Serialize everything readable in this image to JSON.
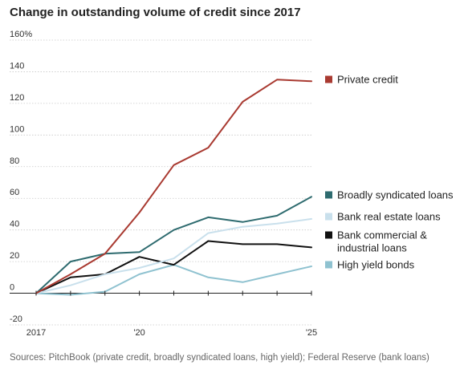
{
  "title": "Change in outstanding volume of credit since 2017",
  "source": "Sources: PitchBook (private credit, broadly syndicated loans, high yield); Federal Reserve (bank loans)",
  "chart_data": {
    "type": "line",
    "title": "Change in outstanding volume of credit since 2017",
    "xlabel": "",
    "ylabel": "",
    "x": [
      2017,
      2018,
      2019,
      2020,
      2021,
      2022,
      2023,
      2024,
      2025
    ],
    "x_tick_labels": [
      {
        "x": 2017,
        "label": "2017"
      },
      {
        "x": 2020,
        "label": "'20"
      },
      {
        "x": 2025,
        "label": "'25"
      }
    ],
    "y_ticks": [
      {
        "value": 160,
        "label": "160%"
      },
      {
        "value": 140,
        "label": "140"
      },
      {
        "value": 120,
        "label": "120"
      },
      {
        "value": 100,
        "label": "100"
      },
      {
        "value": 80,
        "label": "80"
      },
      {
        "value": 60,
        "label": "60"
      },
      {
        "value": 40,
        "label": "40"
      },
      {
        "value": 20,
        "label": "20"
      },
      {
        "value": 0,
        "label": "0"
      },
      {
        "value": -20,
        "label": "-20"
      }
    ],
    "ylim": [
      -20,
      160
    ],
    "xlim": [
      2017,
      2025
    ],
    "grid": true,
    "legend_placement": "right",
    "series": [
      {
        "name": "Private credit",
        "color": "#a93a31",
        "values": [
          0,
          12,
          25,
          51,
          81,
          92,
          121,
          135,
          134
        ]
      },
      {
        "name": "Broadly syndicated loans",
        "color": "#2e6b6f",
        "values": [
          0,
          20,
          25,
          26,
          40,
          48,
          45,
          49,
          61
        ]
      },
      {
        "name": "Bank real estate loans",
        "color": "#c9e0ec",
        "values": [
          0,
          5,
          12,
          16,
          22,
          38,
          42,
          44,
          47
        ]
      },
      {
        "name": "Bank commercial & industrial loans",
        "legend_lines": [
          "Bank commercial &",
          "industrial loans"
        ],
        "color": "#111111",
        "values": [
          0,
          10,
          12,
          23,
          18,
          33,
          31,
          31,
          29
        ]
      },
      {
        "name": "High yield bonds",
        "color": "#8fc2d0",
        "values": [
          0,
          -1,
          1,
          12,
          18,
          10,
          7,
          12,
          17
        ]
      }
    ]
  }
}
